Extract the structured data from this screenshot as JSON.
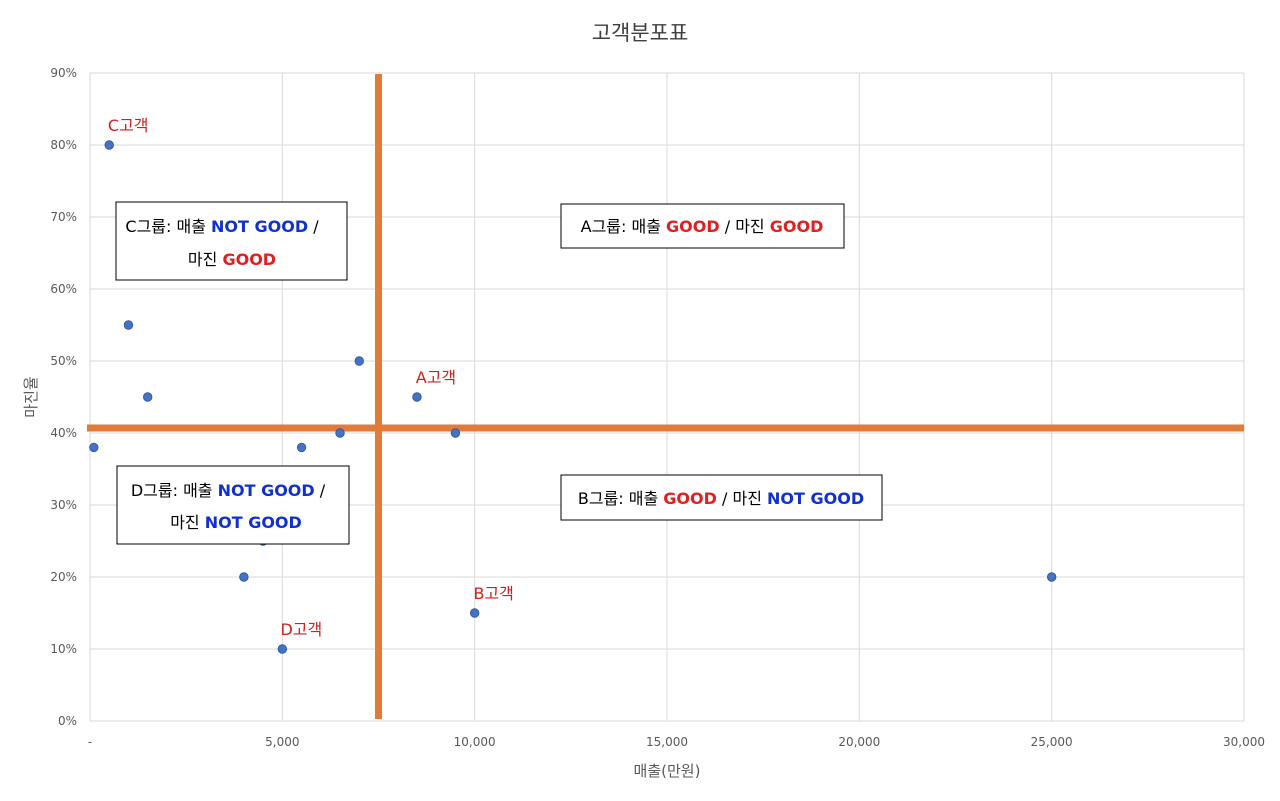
{
  "chart_data": {
    "type": "scatter",
    "title": "고객분포표",
    "xlabel": "매출(만원)",
    "ylabel": "마진율",
    "xlim": [
      0,
      30000
    ],
    "ylim": [
      0,
      0.9
    ],
    "x_ticks": [
      0,
      5000,
      10000,
      15000,
      20000,
      25000,
      30000
    ],
    "x_tick_labels": [
      "-",
      "5,000",
      "10,000",
      "15,000",
      "20,000",
      "25,000",
      "30,000"
    ],
    "y_ticks": [
      0,
      0.1,
      0.2,
      0.3,
      0.4,
      0.5,
      0.6,
      0.7,
      0.8,
      0.9
    ],
    "y_tick_labels": [
      "0%",
      "10%",
      "20%",
      "30%",
      "40%",
      "50%",
      "60%",
      "70%",
      "80%",
      "90%"
    ],
    "grid": true,
    "marker_color": "#4472c4",
    "points": [
      {
        "x": 100,
        "y": 0.38
      },
      {
        "x": 500,
        "y": 0.8
      },
      {
        "x": 1000,
        "y": 0.55
      },
      {
        "x": 1500,
        "y": 0.45
      },
      {
        "x": 4000,
        "y": 0.2
      },
      {
        "x": 4500,
        "y": 0.25
      },
      {
        "x": 5000,
        "y": 0.1
      },
      {
        "x": 5500,
        "y": 0.38
      },
      {
        "x": 6500,
        "y": 0.4
      },
      {
        "x": 7000,
        "y": 0.5
      },
      {
        "x": 8500,
        "y": 0.45
      },
      {
        "x": 9500,
        "y": 0.4
      },
      {
        "x": 10000,
        "y": 0.15
      },
      {
        "x": 25000,
        "y": 0.2
      }
    ],
    "reference_lines": {
      "color": "#e07b39",
      "vertical_x": 7500,
      "horizontal_y": 0.407
    },
    "point_labels": [
      {
        "text": "C고객",
        "x": 500,
        "y": 0.8
      },
      {
        "text": "A고객",
        "x": 8500,
        "y": 0.45
      },
      {
        "text": "B고객",
        "x": 10000,
        "y": 0.15
      },
      {
        "text": "D고객",
        "x": 5000,
        "y": 0.1
      }
    ],
    "quadrant_boxes": [
      {
        "id": "c",
        "lines": [
          [
            {
              "text": "C그룹: 매출 ",
              "style": "normal"
            },
            {
              "text": "NOT GOOD",
              "style": "notgood"
            },
            {
              "text": " /",
              "style": "normal"
            }
          ],
          [
            {
              "text": "마진 ",
              "style": "normal"
            },
            {
              "text": "GOOD",
              "style": "good"
            }
          ]
        ]
      },
      {
        "id": "a",
        "lines": [
          [
            {
              "text": "A그룹: 매출 ",
              "style": "normal"
            },
            {
              "text": "GOOD",
              "style": "good"
            },
            {
              "text": " / 마진 ",
              "style": "normal"
            },
            {
              "text": "GOOD",
              "style": "good"
            }
          ]
        ]
      },
      {
        "id": "d",
        "lines": [
          [
            {
              "text": "D그룹: 매출 ",
              "style": "normal"
            },
            {
              "text": "NOT GOOD",
              "style": "notgood"
            },
            {
              "text": " /",
              "style": "normal"
            }
          ],
          [
            {
              "text": "마진 ",
              "style": "normal"
            },
            {
              "text": "NOT GOOD",
              "style": "notgood"
            }
          ]
        ]
      },
      {
        "id": "b",
        "lines": [
          [
            {
              "text": "B그룹: 매출 ",
              "style": "normal"
            },
            {
              "text": "GOOD",
              "style": "good"
            },
            {
              "text": " / 마진 ",
              "style": "normal"
            },
            {
              "text": "NOT GOOD",
              "style": "notgood"
            }
          ]
        ]
      }
    ]
  }
}
